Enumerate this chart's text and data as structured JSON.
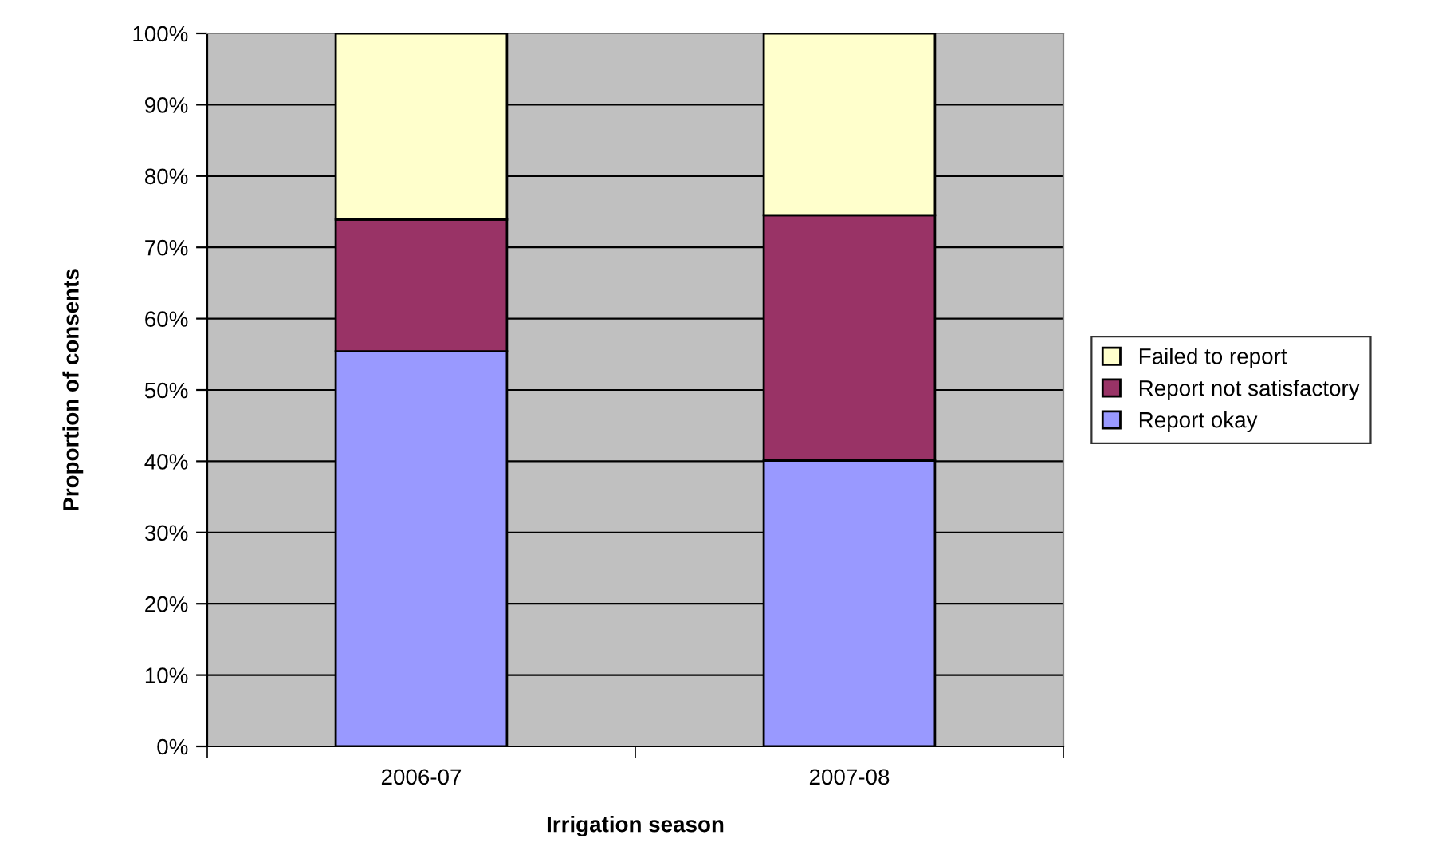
{
  "chart_data": {
    "type": "bar",
    "stacked": true,
    "xlabel": "Irrigation season",
    "ylabel": "Proportion of consents",
    "categories": [
      "2006-07",
      "2007-08"
    ],
    "series": [
      {
        "name": "Report okay",
        "color": "#9999ff",
        "values": [
          55.4,
          40.1
        ]
      },
      {
        "name": "Report not satisfactory",
        "color": "#993366",
        "values": [
          18.5,
          34.4
        ]
      },
      {
        "name": "Failed to report",
        "color": "#ffffcc",
        "values": [
          26.1,
          25.5
        ]
      }
    ],
    "ylim": [
      0,
      100
    ],
    "yticks": [
      {
        "value": 0,
        "label": "0%"
      },
      {
        "value": 10,
        "label": "10%"
      },
      {
        "value": 20,
        "label": "20%"
      },
      {
        "value": 30,
        "label": "30%"
      },
      {
        "value": 40,
        "label": "40%"
      },
      {
        "value": 50,
        "label": "50%"
      },
      {
        "value": 60,
        "label": "60%"
      },
      {
        "value": 70,
        "label": "70%"
      },
      {
        "value": 80,
        "label": "80%"
      },
      {
        "value": 90,
        "label": "90%"
      },
      {
        "value": 100,
        "label": "100%"
      }
    ],
    "grid": "y",
    "legend": "right"
  }
}
